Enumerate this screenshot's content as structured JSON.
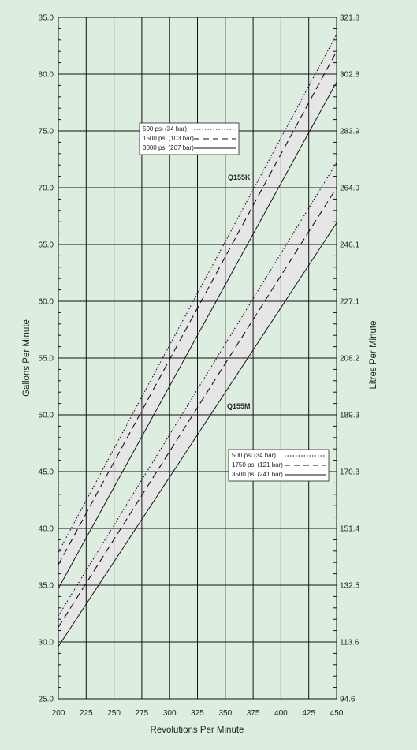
{
  "colors": {
    "background": "#ddeee0",
    "plot_background": "#ddeee0",
    "band_fill": "#e6e6e6",
    "grid": "#111111",
    "line": "#111111",
    "legend_background": "#ffffff"
  },
  "chart_data": {
    "type": "line",
    "xlabel": "Revolutions Per Minute",
    "ylabel": "Gallons Per Minute",
    "ylabel_right": "Litres Per Minute",
    "xlim": [
      200,
      450
    ],
    "ylim": [
      25,
      85
    ],
    "grid": true,
    "x_ticks": [
      200,
      225,
      250,
      275,
      300,
      325,
      350,
      375,
      400,
      425,
      450
    ],
    "y_ticks": [
      "25.0",
      "30.0",
      "35.0",
      "40.0",
      "45.0",
      "50.0",
      "55.0",
      "60.0",
      "65.0",
      "70.0",
      "75.0",
      "80.0",
      "85.0"
    ],
    "y_ticks_right": [
      "94.6",
      "113.6",
      "132.5",
      "151.4",
      "170.3",
      "189.3",
      "208.2",
      "227.1",
      "246.1",
      "264.9",
      "283.9",
      "302.8",
      "321.8"
    ],
    "groups": [
      {
        "label": "Q155K",
        "legend_position": "top-left",
        "series": [
          {
            "name": "500 psi (34 bar)",
            "style": "dotted",
            "x": [
              200,
              450
            ],
            "y": [
              37.9,
              83.5
            ]
          },
          {
            "name": "1500 psi (103 bar)",
            "style": "dashed",
            "x": [
              200,
              450
            ],
            "y": [
              36.8,
              82.0
            ]
          },
          {
            "name": "3000 psi (207 bar)",
            "style": "solid",
            "x": [
              200,
              450
            ],
            "y": [
              34.7,
              79.3
            ]
          }
        ]
      },
      {
        "label": "Q155M",
        "legend_position": "bottom-right",
        "series": [
          {
            "name": "500 psi (34 bar)",
            "style": "dotted",
            "x": [
              200,
              450
            ],
            "y": [
              32.3,
              72.2
            ]
          },
          {
            "name": "1750 psi (121 bar)",
            "style": "dashed",
            "x": [
              200,
              450
            ],
            "y": [
              31.3,
              70.0
            ]
          },
          {
            "name": "3500 psi (241 bar)",
            "style": "solid",
            "x": [
              200,
              450
            ],
            "y": [
              29.6,
              66.9
            ]
          }
        ]
      }
    ]
  }
}
